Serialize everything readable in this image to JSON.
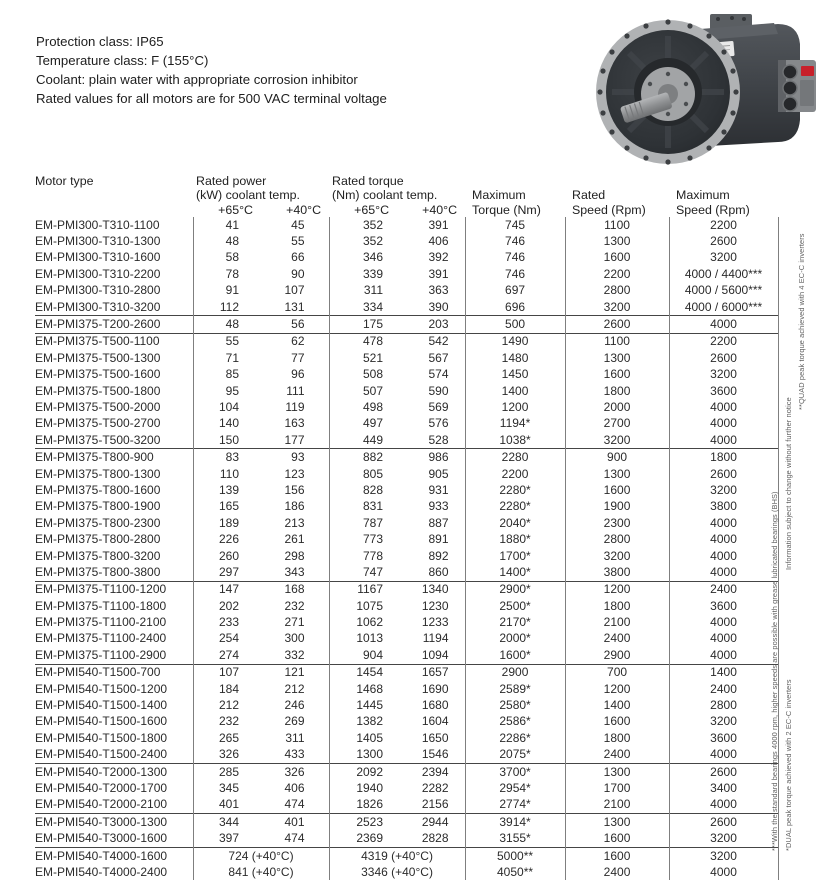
{
  "info": {
    "lines": [
      "Protection class: IP65",
      "Temperature class: F (155°C)",
      "Coolant: plain water with appropriate corrosion inhibitor",
      "Rated values for all motors are for 500 VAC terminal voltage"
    ]
  },
  "photo": {
    "description": "electric-motor-product-photo",
    "label_color": "#c8202a"
  },
  "table": {
    "headers": {
      "motor_type": "Motor type",
      "power_line1": "Rated power",
      "power_line2": "(kW) coolant temp.",
      "torque_line1": "Rated torque",
      "torque_line2": "(Nm) coolant temp.",
      "temp_65": "+65°C",
      "temp_40": "+40°C",
      "max_torque_line1": "Maximum",
      "max_torque_line2": "Torque (Nm)",
      "rated_speed_line1": "Rated",
      "rated_speed_line2": "Speed (Rpm)",
      "max_speed_line1": "Maximum",
      "max_speed_line2": "Speed (Rpm)"
    },
    "rows": [
      {
        "group": 0,
        "type": "EM-PMI300-T310-1100",
        "p65": "41",
        "p40": "45",
        "t65": "352",
        "t40": "391",
        "maxt": "745",
        "rspeed": "1100",
        "maxspeed": "2200"
      },
      {
        "group": 0,
        "type": "EM-PMI300-T310-1300",
        "p65": "48",
        "p40": "55",
        "t65": "352",
        "t40": "406",
        "maxt": "746",
        "rspeed": "1300",
        "maxspeed": "2600"
      },
      {
        "group": 0,
        "type": "EM-PMI300-T310-1600",
        "p65": "58",
        "p40": "66",
        "t65": "346",
        "t40": "392",
        "maxt": "746",
        "rspeed": "1600",
        "maxspeed": "3200"
      },
      {
        "group": 0,
        "type": "EM-PMI300-T310-2200",
        "p65": "78",
        "p40": "90",
        "t65": "339",
        "t40": "391",
        "maxt": "746",
        "rspeed": "2200",
        "maxspeed": "4000 / 4400***"
      },
      {
        "group": 0,
        "type": "EM-PMI300-T310-2800",
        "p65": "91",
        "p40": "107",
        "t65": "311",
        "t40": "363",
        "maxt": "697",
        "rspeed": "2800",
        "maxspeed": "4000 / 5600***"
      },
      {
        "group": 0,
        "type": "EM-PMI300-T310-3200",
        "p65": "112",
        "p40": "131",
        "t65": "334",
        "t40": "390",
        "maxt": "696",
        "rspeed": "3200",
        "maxspeed": "4000 / 6000***"
      },
      {
        "group": 1,
        "type": "EM-PMI375-T200-2600",
        "p65": "48",
        "p40": "56",
        "t65": "175",
        "t40": "203",
        "maxt": "500",
        "rspeed": "2600",
        "maxspeed": "4000"
      },
      {
        "group": 2,
        "type": "EM-PMI375-T500-1100",
        "p65": "55",
        "p40": "62",
        "t65": "478",
        "t40": "542",
        "maxt": "1490",
        "rspeed": "1100",
        "maxspeed": "2200"
      },
      {
        "group": 2,
        "type": "EM-PMI375-T500-1300",
        "p65": "71",
        "p40": "77",
        "t65": "521",
        "t40": "567",
        "maxt": "1480",
        "rspeed": "1300",
        "maxspeed": "2600"
      },
      {
        "group": 2,
        "type": "EM-PMI375-T500-1600",
        "p65": "85",
        "p40": "96",
        "t65": "508",
        "t40": "574",
        "maxt": "1450",
        "rspeed": "1600",
        "maxspeed": "3200"
      },
      {
        "group": 2,
        "type": "EM-PMI375-T500-1800",
        "p65": "95",
        "p40": "111",
        "t65": "507",
        "t40": "590",
        "maxt": "1400",
        "rspeed": "1800",
        "maxspeed": "3600"
      },
      {
        "group": 2,
        "type": "EM-PMI375-T500-2000",
        "p65": "104",
        "p40": "119",
        "t65": "498",
        "t40": "569",
        "maxt": "1200",
        "rspeed": "2000",
        "maxspeed": "4000"
      },
      {
        "group": 2,
        "type": "EM-PMI375-T500-2700",
        "p65": "140",
        "p40": "163",
        "t65": "497",
        "t40": "576",
        "maxt": "1194*",
        "rspeed": "2700",
        "maxspeed": "4000"
      },
      {
        "group": 2,
        "type": "EM-PMI375-T500-3200",
        "p65": "150",
        "p40": "177",
        "t65": "449",
        "t40": "528",
        "maxt": "1038*",
        "rspeed": "3200",
        "maxspeed": "4000"
      },
      {
        "group": 3,
        "type": "EM-PMI375-T800-900",
        "p65": "83",
        "p40": "93",
        "t65": "882",
        "t40": "986",
        "maxt": "2280",
        "rspeed": "900",
        "maxspeed": "1800"
      },
      {
        "group": 3,
        "type": "EM-PMI375-T800-1300",
        "p65": "110",
        "p40": "123",
        "t65": "805",
        "t40": "905",
        "maxt": "2200",
        "rspeed": "1300",
        "maxspeed": "2600"
      },
      {
        "group": 3,
        "type": "EM-PMI375-T800-1600",
        "p65": "139",
        "p40": "156",
        "t65": "828",
        "t40": "931",
        "maxt": "2280*",
        "rspeed": "1600",
        "maxspeed": "3200"
      },
      {
        "group": 3,
        "type": "EM-PMI375-T800-1900",
        "p65": "165",
        "p40": "186",
        "t65": "831",
        "t40": "933",
        "maxt": "2280*",
        "rspeed": "1900",
        "maxspeed": "3800"
      },
      {
        "group": 3,
        "type": "EM-PMI375-T800-2300",
        "p65": "189",
        "p40": "213",
        "t65": "787",
        "t40": "887",
        "maxt": "2040*",
        "rspeed": "2300",
        "maxspeed": "4000"
      },
      {
        "group": 3,
        "type": "EM-PMI375-T800-2800",
        "p65": "226",
        "p40": "261",
        "t65": "773",
        "t40": "891",
        "maxt": "1880*",
        "rspeed": "2800",
        "maxspeed": "4000"
      },
      {
        "group": 3,
        "type": "EM-PMI375-T800-3200",
        "p65": "260",
        "p40": "298",
        "t65": "778",
        "t40": "892",
        "maxt": "1700*",
        "rspeed": "3200",
        "maxspeed": "4000"
      },
      {
        "group": 3,
        "type": "EM-PMI375-T800-3800",
        "p65": "297",
        "p40": "343",
        "t65": "747",
        "t40": "860",
        "maxt": "1400*",
        "rspeed": "3800",
        "maxspeed": "4000"
      },
      {
        "group": 4,
        "type": "EM-PMI375-T1100-1200",
        "p65": "147",
        "p40": "168",
        "t65": "1167",
        "t40": "1340",
        "maxt": "2900*",
        "rspeed": "1200",
        "maxspeed": "2400"
      },
      {
        "group": 4,
        "type": "EM-PMI375-T1100-1800",
        "p65": "202",
        "p40": "232",
        "t65": "1075",
        "t40": "1230",
        "maxt": "2500*",
        "rspeed": "1800",
        "maxspeed": "3600"
      },
      {
        "group": 4,
        "type": "EM-PMI375-T1100-2100",
        "p65": "233",
        "p40": "271",
        "t65": "1062",
        "t40": "1233",
        "maxt": "2170*",
        "rspeed": "2100",
        "maxspeed": "4000"
      },
      {
        "group": 4,
        "type": "EM-PMI375-T1100-2400",
        "p65": "254",
        "p40": "300",
        "t65": "1013",
        "t40": "1194",
        "maxt": "2000*",
        "rspeed": "2400",
        "maxspeed": "4000"
      },
      {
        "group": 4,
        "type": "EM-PMI375-T1100-2900",
        "p65": "274",
        "p40": "332",
        "t65": "904",
        "t40": "1094",
        "maxt": "1600*",
        "rspeed": "2900",
        "maxspeed": "4000"
      },
      {
        "group": 5,
        "type": "EM-PMI540-T1500-700",
        "p65": "107",
        "p40": "121",
        "t65": "1454",
        "t40": "1657",
        "maxt": "2900",
        "rspeed": "700",
        "maxspeed": "1400"
      },
      {
        "group": 5,
        "type": "EM-PMI540-T1500-1200",
        "p65": "184",
        "p40": "212",
        "t65": "1468",
        "t40": "1690",
        "maxt": "2589*",
        "rspeed": "1200",
        "maxspeed": "2400"
      },
      {
        "group": 5,
        "type": "EM-PMI540-T1500-1400",
        "p65": "212",
        "p40": "246",
        "t65": "1445",
        "t40": "1680",
        "maxt": "2580*",
        "rspeed": "1400",
        "maxspeed": "2800"
      },
      {
        "group": 5,
        "type": "EM-PMI540-T1500-1600",
        "p65": "232",
        "p40": "269",
        "t65": "1382",
        "t40": "1604",
        "maxt": "2586*",
        "rspeed": "1600",
        "maxspeed": "3200"
      },
      {
        "group": 5,
        "type": "EM-PMI540-T1500-1800",
        "p65": "265",
        "p40": "311",
        "t65": "1405",
        "t40": "1650",
        "maxt": "2286*",
        "rspeed": "1800",
        "maxspeed": "3600"
      },
      {
        "group": 5,
        "type": "EM-PMI540-T1500-2400",
        "p65": "326",
        "p40": "433",
        "t65": "1300",
        "t40": "1546",
        "maxt": "2075*",
        "rspeed": "2400",
        "maxspeed": "4000"
      },
      {
        "group": 6,
        "type": "EM-PMI540-T2000-1300",
        "p65": "285",
        "p40": "326",
        "t65": "2092",
        "t40": "2394",
        "maxt": "3700*",
        "rspeed": "1300",
        "maxspeed": "2600"
      },
      {
        "group": 6,
        "type": "EM-PMI540-T2000-1700",
        "p65": "345",
        "p40": "406",
        "t65": "1940",
        "t40": "2282",
        "maxt": "2954*",
        "rspeed": "1700",
        "maxspeed": "3400"
      },
      {
        "group": 6,
        "type": "EM-PMI540-T2000-2100",
        "p65": "401",
        "p40": "474",
        "t65": "1826",
        "t40": "2156",
        "maxt": "2774*",
        "rspeed": "2100",
        "maxspeed": "4000"
      },
      {
        "group": 7,
        "type": "EM-PMI540-T3000-1300",
        "p65": "344",
        "p40": "401",
        "t65": "2523",
        "t40": "2944",
        "maxt": "3914*",
        "rspeed": "1300",
        "maxspeed": "2600"
      },
      {
        "group": 7,
        "type": "EM-PMI540-T3000-1600",
        "p65": "397",
        "p40": "474",
        "t65": "2369",
        "t40": "2828",
        "maxt": "3155*",
        "rspeed": "1600",
        "maxspeed": "3200"
      },
      {
        "group": 8,
        "type": "EM-PMI540-T4000-1600",
        "p65": "724 (+40°C)",
        "p40": null,
        "t65": "4319 (+40°C)",
        "t40": null,
        "maxt": "5000**",
        "rspeed": "1600",
        "maxspeed": "3200"
      },
      {
        "group": 8,
        "type": "EM-PMI540-T4000-2400",
        "p65": "841 (+40°C)",
        "p40": null,
        "t65": "3346 (+40°C)",
        "t40": null,
        "maxt": "4050**",
        "rspeed": "2400",
        "maxspeed": "4000"
      }
    ]
  },
  "footnotes": {
    "bearings": "***With the standard bearings 4000 rpm, higher speeds are possible with grease lubricated bearings (BHS)",
    "quad": "**QUAD peak torque achieved with 4 EC-C inverters",
    "dual": "*DUAL peak torque achieved with 2 EC-C inverters",
    "info": "Information subject to change without further notice"
  }
}
